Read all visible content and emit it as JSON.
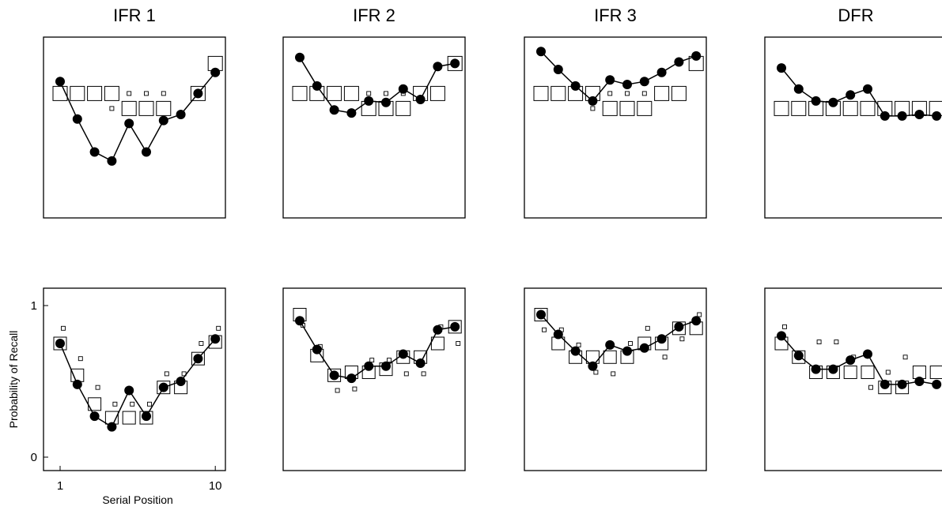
{
  "chart_data": [
    {
      "type": "scatter",
      "title": "IFR 1",
      "row": "top",
      "ylim": [
        0,
        1
      ],
      "x": [
        1,
        2,
        3,
        4,
        5,
        6,
        7,
        8,
        9,
        10
      ],
      "series": [
        {
          "role": "data",
          "values": [
            0.82,
            0.57,
            0.35,
            0.29,
            0.54,
            0.35,
            0.56,
            0.6,
            0.74,
            0.88
          ]
        },
        {
          "role": "model_large",
          "values": [
            0.74,
            0.74,
            0.74,
            0.74,
            0.64,
            0.64,
            0.64,
            null,
            0.74,
            0.94
          ]
        },
        {
          "role": "model_small",
          "values": [
            null,
            null,
            null,
            0.64,
            0.74,
            0.74,
            0.74,
            null,
            null,
            null
          ]
        }
      ]
    },
    {
      "type": "scatter",
      "title": "IFR 2",
      "row": "top",
      "ylim": [
        0,
        1
      ],
      "x": [
        1,
        2,
        3,
        4,
        5,
        6,
        7,
        8,
        9,
        10
      ],
      "series": [
        {
          "role": "data",
          "values": [
            0.98,
            0.79,
            0.63,
            0.61,
            0.69,
            0.68,
            0.77,
            0.7,
            0.92,
            0.94
          ]
        },
        {
          "role": "model_large",
          "values": [
            0.74,
            0.74,
            0.74,
            0.74,
            0.64,
            0.64,
            0.64,
            0.74,
            0.74,
            0.94
          ]
        },
        {
          "role": "model_small",
          "values": [
            null,
            null,
            null,
            null,
            0.74,
            0.74,
            0.74,
            null,
            null,
            null
          ]
        }
      ]
    },
    {
      "type": "scatter",
      "title": "IFR 3",
      "row": "top",
      "ylim": [
        0,
        1
      ],
      "x": [
        1,
        2,
        3,
        4,
        5,
        6,
        7,
        8,
        9,
        10
      ],
      "series": [
        {
          "role": "data",
          "values": [
            1.02,
            0.9,
            0.79,
            0.69,
            0.83,
            0.8,
            0.82,
            0.88,
            0.95,
            0.99
          ]
        },
        {
          "role": "model_large",
          "values": [
            0.74,
            0.74,
            0.74,
            0.74,
            0.64,
            0.64,
            0.64,
            0.74,
            0.74,
            0.94
          ]
        },
        {
          "role": "model_small",
          "values": [
            null,
            null,
            null,
            0.64,
            0.74,
            0.74,
            0.74,
            null,
            null,
            null
          ]
        }
      ]
    },
    {
      "type": "scatter",
      "title": "DFR",
      "row": "top",
      "ylim": [
        0,
        1
      ],
      "x": [
        1,
        2,
        3,
        4,
        5,
        6,
        7,
        8,
        9,
        10
      ],
      "series": [
        {
          "role": "data",
          "values": [
            0.91,
            0.77,
            0.69,
            0.68,
            0.73,
            0.77,
            0.59,
            0.59,
            0.6,
            0.59
          ]
        },
        {
          "role": "model_large",
          "values": [
            0.64,
            0.64,
            0.64,
            0.64,
            0.64,
            0.64,
            0.64,
            0.64,
            0.64,
            0.64
          ]
        },
        {
          "role": "model_small",
          "values": []
        }
      ]
    },
    {
      "type": "scatter",
      "title": "",
      "row": "bottom",
      "ylim": [
        0,
        1
      ],
      "xlim": [
        1,
        10
      ],
      "xticks": [
        "1",
        "10"
      ],
      "yticks": [
        "0",
        "1"
      ],
      "xlabel": "Serial Position",
      "ylabel": "Probability of Recall",
      "x": [
        1,
        2,
        3,
        4,
        5,
        6,
        7,
        8,
        9,
        10
      ],
      "series": [
        {
          "role": "data",
          "values": [
            0.75,
            0.48,
            0.27,
            0.2,
            0.44,
            0.27,
            0.46,
            0.5,
            0.65,
            0.78
          ]
        },
        {
          "role": "model_large",
          "values": [
            0.75,
            0.54,
            0.35,
            0.26,
            0.26,
            0.26,
            0.46,
            0.46,
            0.65,
            0.76
          ]
        },
        {
          "role": "model_small",
          "values": [
            0.85,
            0.65,
            0.46,
            0.35,
            0.35,
            0.35,
            0.55,
            0.55,
            0.75,
            0.85
          ]
        }
      ]
    },
    {
      "type": "scatter",
      "title": "",
      "row": "bottom",
      "ylim": [
        0,
        1
      ],
      "x": [
        1,
        2,
        3,
        4,
        5,
        6,
        7,
        8,
        9,
        10
      ],
      "series": [
        {
          "role": "data",
          "values": [
            0.9,
            0.71,
            0.54,
            0.52,
            0.6,
            0.6,
            0.68,
            0.62,
            0.84,
            0.86
          ]
        },
        {
          "role": "model_large",
          "values": [
            0.94,
            0.67,
            0.54,
            0.56,
            0.56,
            0.58,
            0.66,
            0.66,
            0.75,
            0.86
          ]
        },
        {
          "role": "model_small",
          "values": [
            0.87,
            0.73,
            0.44,
            0.45,
            0.64,
            0.64,
            0.55,
            0.55,
            0.86,
            0.75
          ]
        }
      ]
    },
    {
      "type": "scatter",
      "title": "",
      "row": "bottom",
      "ylim": [
        0,
        1
      ],
      "x": [
        1,
        2,
        3,
        4,
        5,
        6,
        7,
        8,
        9,
        10
      ],
      "series": [
        {
          "role": "data",
          "values": [
            0.94,
            0.81,
            0.7,
            0.6,
            0.74,
            0.7,
            0.72,
            0.78,
            0.86,
            0.9
          ]
        },
        {
          "role": "model_large",
          "values": [
            0.94,
            0.75,
            0.66,
            0.66,
            0.66,
            0.66,
            0.75,
            0.75,
            0.85,
            0.85
          ]
        },
        {
          "role": "model_small",
          "values": [
            0.84,
            0.84,
            0.74,
            0.56,
            0.55,
            0.75,
            0.85,
            0.66,
            0.78,
            0.94
          ]
        }
      ]
    },
    {
      "type": "scatter",
      "title": "",
      "row": "bottom",
      "ylim": [
        0,
        1
      ],
      "x": [
        1,
        2,
        3,
        4,
        5,
        6,
        7,
        8,
        9,
        10
      ],
      "series": [
        {
          "role": "data",
          "values": [
            0.8,
            0.67,
            0.58,
            0.58,
            0.64,
            0.68,
            0.48,
            0.48,
            0.5,
            0.48
          ]
        },
        {
          "role": "model_large",
          "values": [
            0.75,
            0.66,
            0.56,
            0.56,
            0.56,
            0.56,
            0.46,
            0.46,
            0.56,
            0.56
          ]
        },
        {
          "role": "model_small",
          "values": [
            0.86,
            0.66,
            0.76,
            0.76,
            0.66,
            0.46,
            0.56,
            0.66,
            0.56,
            0.56
          ]
        }
      ]
    }
  ]
}
